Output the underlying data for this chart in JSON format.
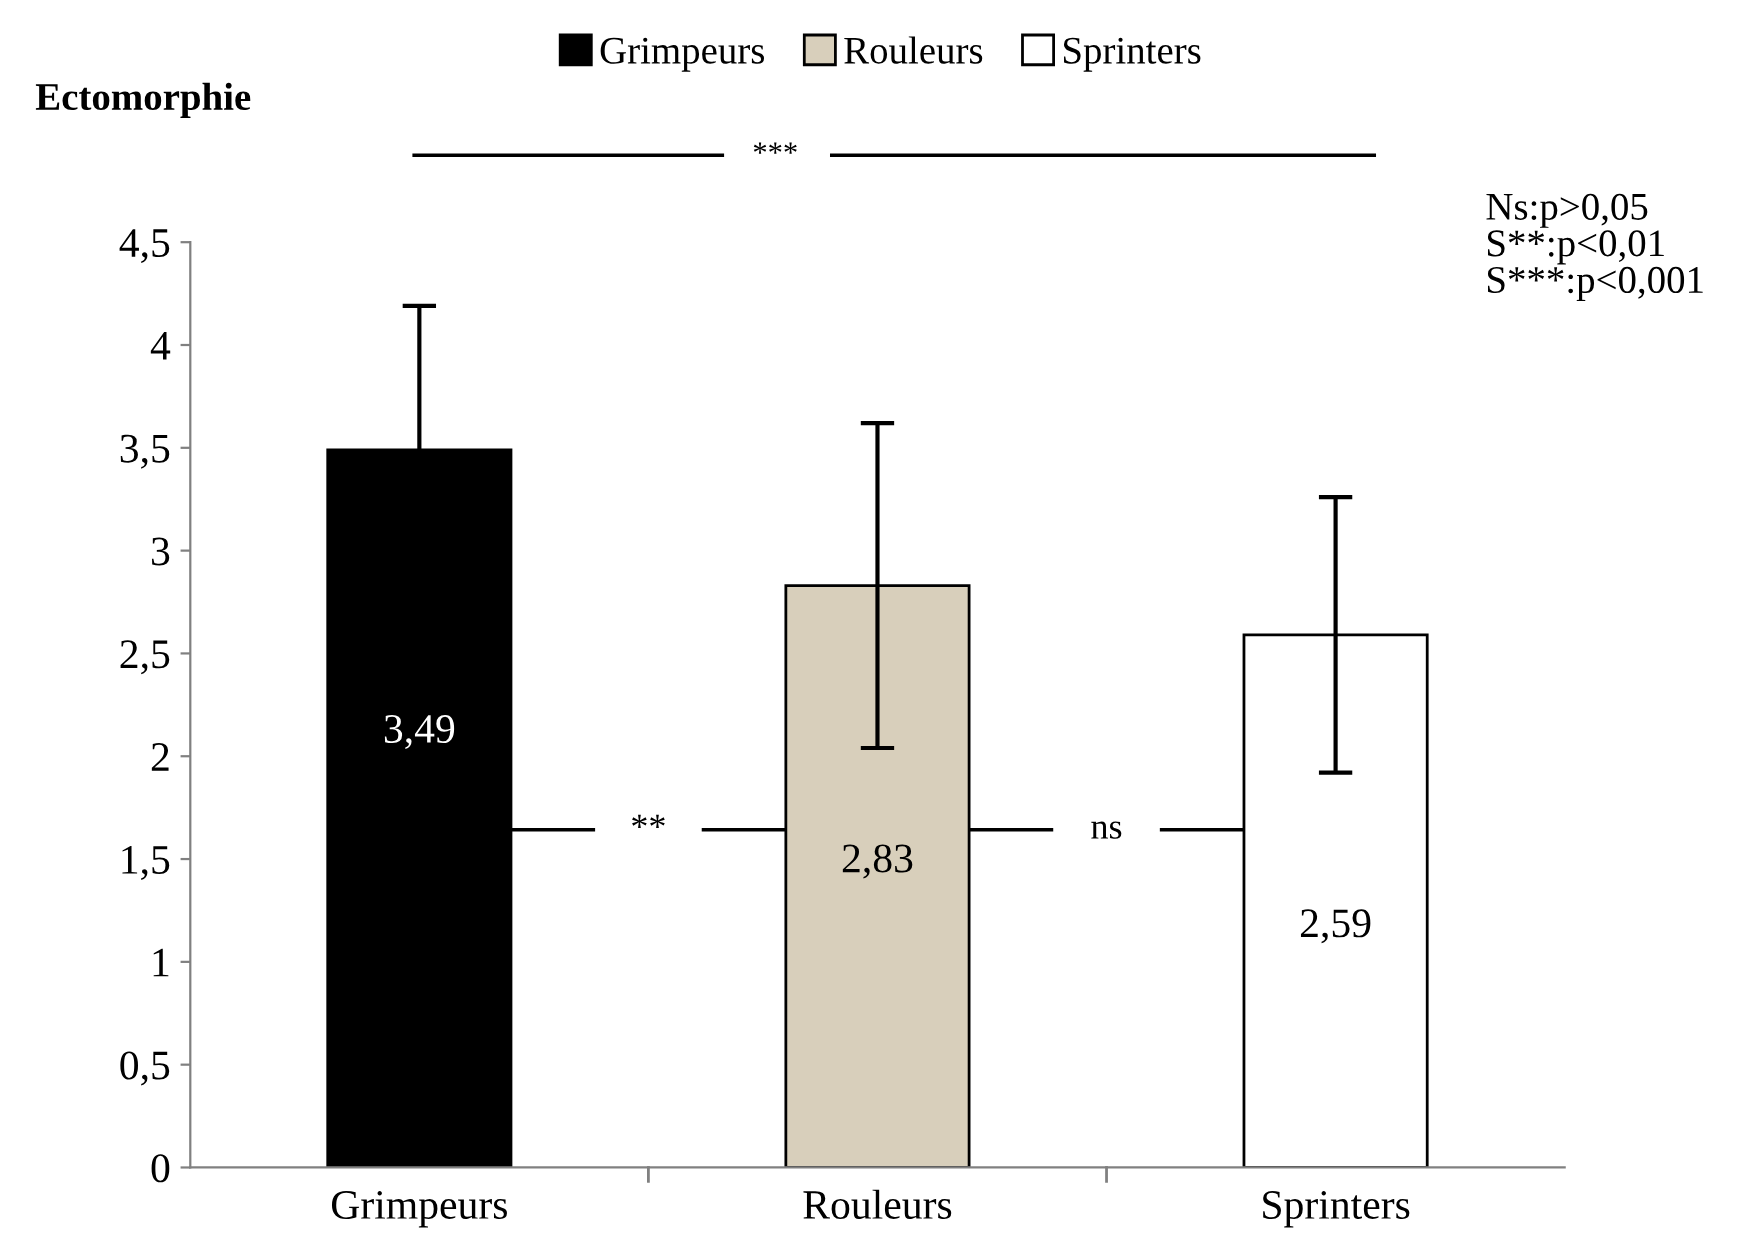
{
  "chart_data": {
    "type": "bar",
    "title": "Ectomorphie",
    "categories": [
      "Grimpeurs",
      "Rouleurs",
      "Sprinters"
    ],
    "series": [
      {
        "name": "Grimpeurs",
        "color": "#000000",
        "values": [
          3.49,
          null,
          null
        ],
        "errors": [
          0.7,
          null,
          null
        ],
        "value_labels": [
          "3,49",
          null,
          null
        ]
      },
      {
        "name": "Rouleurs",
        "color": "#d8cfbb",
        "values": [
          null,
          2.83,
          null
        ],
        "errors": [
          null,
          0.79,
          null
        ],
        "value_labels": [
          null,
          "2,83",
          null
        ]
      },
      {
        "name": "Sprinters",
        "color": "#ffffff",
        "values": [
          null,
          null,
          2.59
        ],
        "errors": [
          null,
          null,
          0.67
        ],
        "value_labels": [
          null,
          null,
          "2,59"
        ]
      }
    ],
    "ylim": [
      0,
      4.5
    ],
    "yticks": [
      0,
      {
        "value": 0.5,
        "label": "0,5"
      },
      1,
      {
        "value": 1.5,
        "label": "1,5"
      },
      2,
      {
        "value": 2.5,
        "label": "2,5"
      },
      3,
      {
        "value": 3.5,
        "label": "3,5"
      },
      4,
      {
        "value": 4.5,
        "label": "4,5"
      }
    ],
    "legend": "top",
    "grid": false,
    "annotations": [
      "**",
      "ns",
      "***",
      "Ns:p>0,05\nS**:p<0,01\nS***:p<0,001"
    ]
  }
}
